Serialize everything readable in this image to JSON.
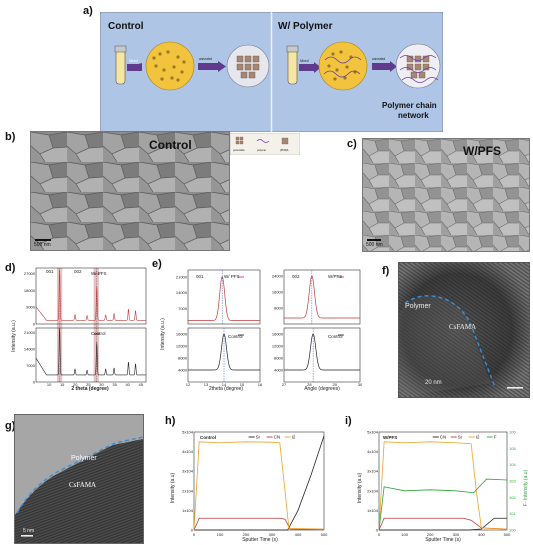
{
  "panels": {
    "a": {
      "label": "a)",
      "control_title": "Control",
      "polymer_title": "W/ Polymer",
      "arrow_mix_left": "Mixed",
      "arrow_anneal_left": "annealed",
      "arrow_mix_right": "Mixed",
      "arrow_anneal_right": "annealed",
      "network_label_1": "Polymer chain",
      "network_label_2": "network",
      "legend": [
        "perovskite",
        "polymer",
        "[PbI6]4-"
      ]
    },
    "b": {
      "label": "b)",
      "title": "Control",
      "scalebar": "500 nm"
    },
    "c": {
      "label": "c)",
      "title": "W/PFS",
      "scalebar": "500 nm"
    },
    "d": {
      "label": "d)",
      "ylabel": "Intensity (a.u.)",
      "xlabel": "2 theta (degree)",
      "legend_top": "W/ PFS",
      "legend_bottom": "Control",
      "peak_001": "001",
      "peak_002": "002",
      "yticks_top": [
        "27000",
        "18000",
        "9000",
        "0"
      ],
      "yticks_bottom": [
        "21000",
        "14000",
        "7000",
        "0"
      ],
      "xticks": [
        "10",
        "15",
        "20",
        "25",
        "30",
        "35",
        "40",
        "45"
      ]
    },
    "e": {
      "label": "e)",
      "ylabel": "Intensity (a.u.)",
      "left": {
        "peak": "001",
        "legend_top": "W/ PFS",
        "legend_bottom": "Control",
        "xlabel": "2theta (degree)",
        "xticks": [
          "12",
          "13",
          "14",
          "15",
          "16"
        ],
        "yticks_top": [
          "21000",
          "14000",
          "7000"
        ],
        "yticks_bottom": [
          "16000",
          "12000",
          "8000",
          "4000"
        ]
      },
      "right": {
        "peak": "002",
        "legend_top": "W/PFS",
        "legend_bottom": "Control",
        "xlabel": "Angle (degrees)",
        "xticks": [
          "27",
          "28",
          "29",
          "30"
        ],
        "yticks_top": [
          "24000",
          "16000",
          "8000"
        ],
        "yticks_bottom": [
          "16000",
          "12000",
          "8000",
          "4000"
        ]
      }
    },
    "f": {
      "label": "f)",
      "polymer": "Polymer",
      "material": "CsFAMA",
      "scalebar": "20 nm"
    },
    "g": {
      "label": "g)",
      "polymer": "Polymer",
      "material": "CsFAMA",
      "scalebar": "5 nm"
    },
    "h": {
      "label": "h)",
      "title": "Control",
      "ylabel": "Intensity (a.u)",
      "xlabel": "Sputter Time (s)",
      "legend": [
        "Si",
        "CN",
        "I2"
      ],
      "yticks": [
        "5x10^4",
        "4x10^4",
        "3x10^4",
        "2x10^4",
        "1x10^4",
        "0"
      ],
      "xticks": [
        "0",
        "100",
        "200",
        "300",
        "400",
        "500"
      ]
    },
    "i": {
      "label": "i)",
      "title": "W/PFS",
      "ylabel": "Intensity (a.u)",
      "ylabel_right": "F- Intensity (a.u)",
      "xlabel": "Sputter Time (s)",
      "legend": [
        "CN",
        "Si",
        "I2",
        "F"
      ],
      "yticks": [
        "5x10^4",
        "4x10^4",
        "3x10^4",
        "2x10^4",
        "1x10^4",
        "0"
      ],
      "yticks_right": [
        "10^6",
        "10^5",
        "10^4",
        "10^3",
        "10^2",
        "10^1",
        "10^0"
      ],
      "xticks": [
        "0",
        "100",
        "200",
        "300",
        "400",
        "500"
      ]
    }
  },
  "chart_data": [
    {
      "panel": "d",
      "type": "line",
      "xlabel": "2 theta (degree)",
      "ylabel": "Intensity (a.u.)",
      "xlim": [
        5,
        47
      ],
      "peaks_2theta": [
        14.0,
        19.9,
        24.5,
        28.2,
        31.6,
        34.8,
        40.3,
        43.0
      ],
      "series": [
        {
          "name": "W/ PFS",
          "color": "#c0393b",
          "peak_heights": [
            27000,
            3000,
            2500,
            18000,
            2800,
            3500,
            6000,
            5200
          ],
          "baseline": 2000
        },
        {
          "name": "Control",
          "color": "#222222",
          "peak_heights": [
            21000,
            2500,
            2000,
            14000,
            2500,
            3000,
            5500,
            4800
          ],
          "baseline": 3000
        }
      ],
      "shaded_regions_2theta": [
        [
          13,
          15
        ],
        [
          27,
          29
        ]
      ]
    },
    {
      "panel": "e-left",
      "type": "line",
      "xlabel": "2theta (degree)",
      "ylabel": "Intensity (a.u.)",
      "xlim": [
        12,
        16
      ],
      "series": [
        {
          "name": "W/ PFS",
          "color": "#c0393b",
          "center": 13.9,
          "peak": 21000,
          "baseline": 1500
        },
        {
          "name": "Control",
          "color": "#222222",
          "center": 14.0,
          "peak": 16000,
          "baseline": 4000
        }
      ]
    },
    {
      "panel": "e-right",
      "type": "line",
      "xlabel": "Angle (degrees)",
      "ylabel": "Intensity (a.u.)",
      "xlim": [
        27,
        30
      ],
      "series": [
        {
          "name": "W/PFS",
          "color": "#c0393b",
          "center": 28.1,
          "peak": 24000,
          "baseline": 3000
        },
        {
          "name": "Control",
          "color": "#222222",
          "center": 28.15,
          "peak": 16000,
          "baseline": 4000
        }
      ]
    },
    {
      "panel": "h",
      "type": "line",
      "xlabel": "Sputter Time (s)",
      "ylabel": "Intensity (a.u)",
      "xlim": [
        0,
        500
      ],
      "ylim": [
        0,
        50000
      ],
      "series": [
        {
          "name": "Si",
          "color": "#222222",
          "x": [
            0,
            330,
            360,
            400,
            450,
            500
          ],
          "y": [
            0,
            0,
            0,
            10000,
            28000,
            48000
          ]
        },
        {
          "name": "CN",
          "color": "#c0393b",
          "x": [
            0,
            20,
            330,
            350,
            370,
            500
          ],
          "y": [
            0,
            6000,
            6000,
            5500,
            500,
            200
          ]
        },
        {
          "name": "I2",
          "color": "#f0a32a",
          "x": [
            0,
            20,
            100,
            200,
            300,
            330,
            350,
            365,
            500
          ],
          "y": [
            0,
            45000,
            44500,
            45000,
            44800,
            44500,
            20000,
            800,
            500
          ]
        }
      ]
    },
    {
      "panel": "i",
      "type": "line",
      "xlabel": "Sputter Time (s)",
      "ylabel": "Intensity (a.u)",
      "xlim": [
        0,
        500
      ],
      "ylim": [
        0,
        50000
      ],
      "series": [
        {
          "name": "CN",
          "color": "#222222",
          "x": [
            0,
            350,
            400,
            450,
            500
          ],
          "y": [
            0,
            0,
            500,
            6000,
            6000
          ]
        },
        {
          "name": "Si",
          "color": "#c0393b",
          "x": [
            0,
            20,
            330,
            360,
            400,
            500
          ],
          "y": [
            0,
            6000,
            6000,
            5000,
            1000,
            500
          ]
        },
        {
          "name": "I2",
          "color": "#f0a32a",
          "x": [
            0,
            20,
            100,
            200,
            300,
            360,
            380,
            400,
            500
          ],
          "y": [
            0,
            45000,
            44500,
            45000,
            44500,
            44000,
            20000,
            1000,
            500
          ]
        },
        {
          "name": "F",
          "color": "#2ea33a",
          "x": [
            0,
            20,
            100,
            200,
            300,
            370,
            420,
            500
          ],
          "y": [
            0,
            22000,
            20000,
            20500,
            20000,
            19000,
            26000,
            25500
          ]
        }
      ]
    }
  ]
}
